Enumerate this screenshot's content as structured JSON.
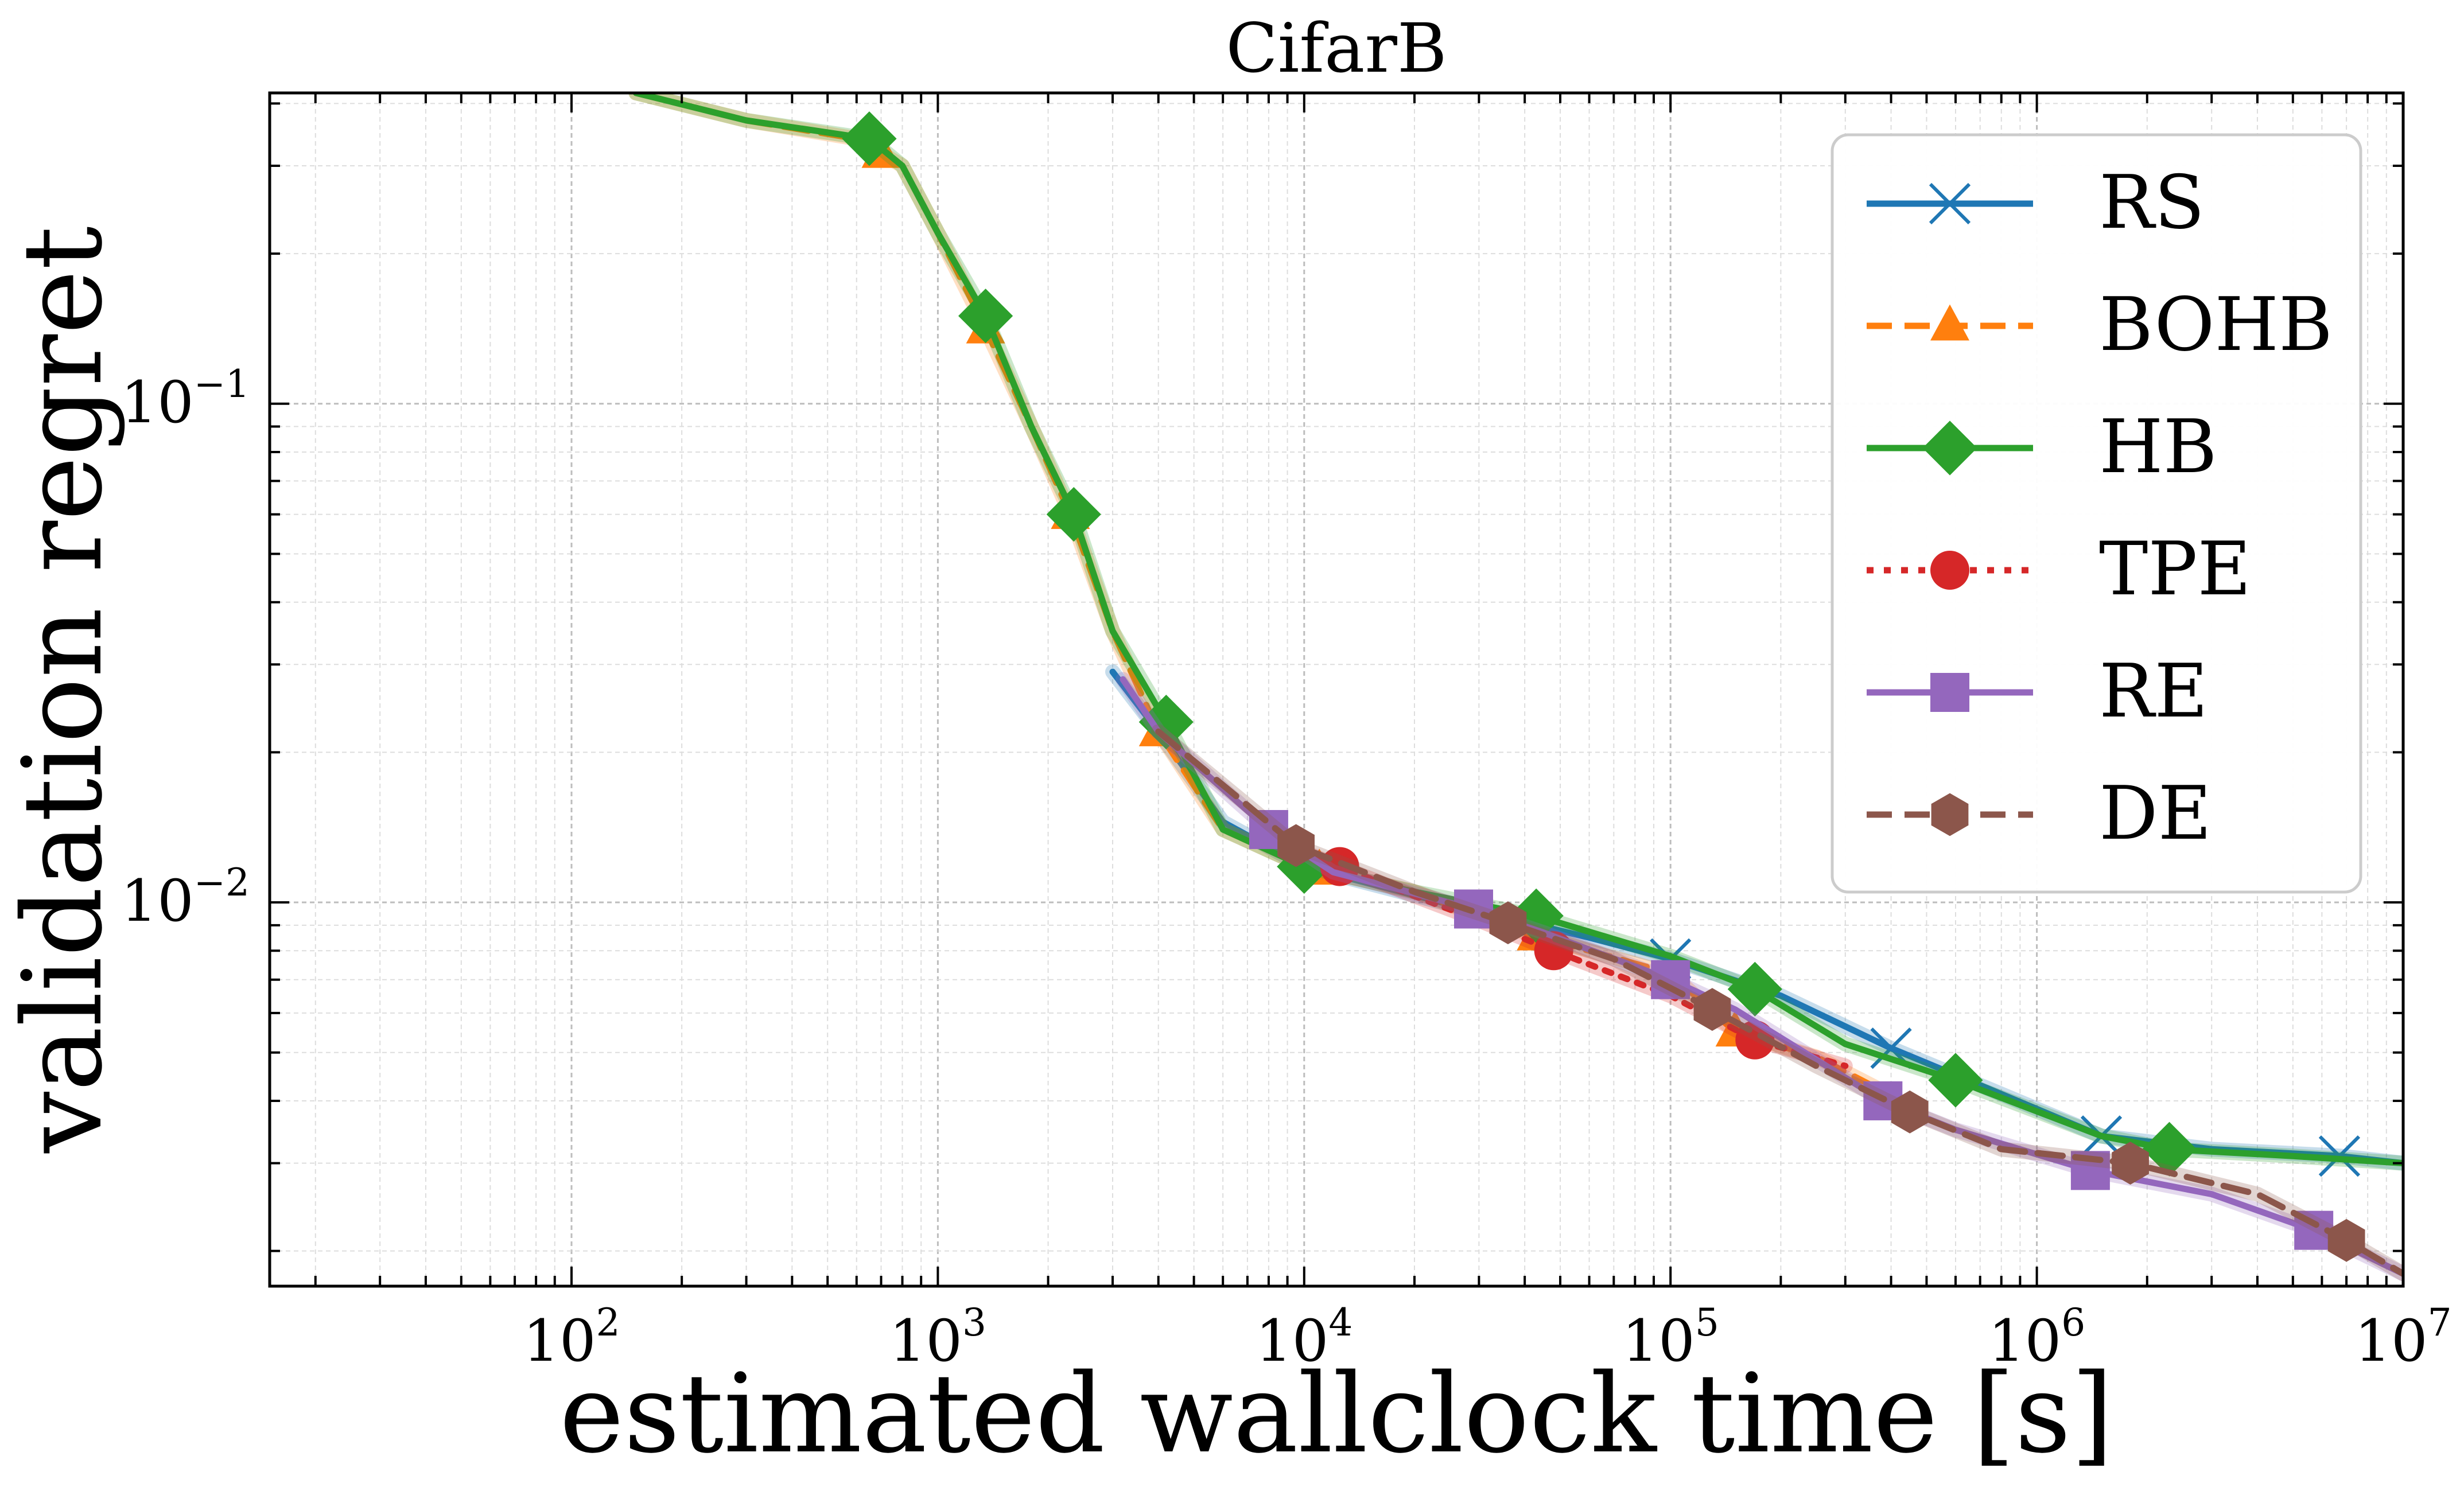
{
  "chart_data": {
    "type": "line",
    "title": "CifarB",
    "xlabel": "estimated wallclock time [s]",
    "ylabel": "validation regret",
    "x_scale": "log",
    "y_scale": "log",
    "xlim": [
      15,
      10000000
    ],
    "ylim": [
      0.0017,
      0.42
    ],
    "x_ticks": [
      {
        "value": 100,
        "base": "10",
        "exp": "2"
      },
      {
        "value": 1000,
        "base": "10",
        "exp": "3"
      },
      {
        "value": 10000,
        "base": "10",
        "exp": "4"
      },
      {
        "value": 100000,
        "base": "10",
        "exp": "5"
      },
      {
        "value": 1000000,
        "base": "10",
        "exp": "6"
      },
      {
        "value": 10000000,
        "base": "10",
        "exp": "7"
      }
    ],
    "y_ticks": [
      {
        "value": 0.1,
        "base": "10",
        "exp": "−1"
      },
      {
        "value": 0.01,
        "base": "10",
        "exp": "−2"
      }
    ],
    "grid": true,
    "legend_position": "top-right",
    "series": [
      {
        "name": "RS",
        "color": "#1f77b4",
        "dash": "solid",
        "marker": "x",
        "x": [
          3000,
          4000,
          6000,
          10000,
          25000,
          60000,
          100000,
          200000,
          400000,
          700000,
          1500000,
          3000000,
          6700000,
          10000000
        ],
        "y": [
          0.029,
          0.022,
          0.0145,
          0.0118,
          0.0099,
          0.0085,
          0.0077,
          0.0065,
          0.0051,
          0.0043,
          0.0034,
          0.0032,
          0.0031,
          0.003
        ],
        "markers_x": [
          100000,
          400000,
          1500000,
          6700000
        ]
      },
      {
        "name": "BOHB",
        "color": "#ff7f0e",
        "dash": "dashed",
        "marker": "triangle",
        "x": [
          150,
          300,
          600,
          800,
          1000,
          1300,
          1800,
          2300,
          3000,
          4000,
          6000,
          10000,
          20000,
          40000,
          100000,
          150000,
          250000,
          400000
        ],
        "y": [
          0.42,
          0.37,
          0.34,
          0.3,
          0.22,
          0.15,
          0.09,
          0.06,
          0.035,
          0.022,
          0.014,
          0.0118,
          0.0105,
          0.0087,
          0.0072,
          0.0055,
          0.0049,
          0.0041
        ],
        "markers_x": [
          700,
          1350,
          2300,
          4000,
          11000,
          43000,
          150000
        ]
      },
      {
        "name": "HB",
        "color": "#2ca02c",
        "dash": "solid",
        "marker": "diamond",
        "x": [
          150,
          300,
          650,
          800,
          1000,
          1350,
          1800,
          2350,
          3000,
          4200,
          6000,
          10000,
          20000,
          43000,
          100000,
          170000,
          300000,
          600000,
          1500000,
          2300000,
          5000000,
          10000000
        ],
        "y": [
          0.42,
          0.37,
          0.34,
          0.3,
          0.22,
          0.15,
          0.09,
          0.06,
          0.035,
          0.023,
          0.014,
          0.0118,
          0.0105,
          0.0094,
          0.0078,
          0.0067,
          0.0052,
          0.0044,
          0.0034,
          0.0032,
          0.0031,
          0.003
        ],
        "markers_x": [
          650,
          1350,
          2350,
          4200,
          10000,
          43000,
          170000,
          600000,
          2300000
        ]
      },
      {
        "name": "TPE",
        "color": "#d62728",
        "dash": "dotted",
        "marker": "circle",
        "x": [
          8000,
          12500,
          20000,
          30000,
          48000,
          100000,
          170000,
          300000
        ],
        "y": [
          0.0135,
          0.0118,
          0.0103,
          0.0092,
          0.008,
          0.0065,
          0.0053,
          0.0047
        ],
        "markers_x": [
          12500,
          48000,
          170000
        ]
      },
      {
        "name": "RE",
        "color": "#9467bd",
        "dash": "solid",
        "marker": "square",
        "x": [
          3200,
          4000,
          8000,
          12000,
          29000,
          45000,
          100000,
          150000,
          380000,
          600000,
          1400000,
          3000000,
          5700000,
          10000000
        ],
        "y": [
          0.028,
          0.022,
          0.014,
          0.0115,
          0.0097,
          0.0087,
          0.007,
          0.0061,
          0.004,
          0.0035,
          0.0029,
          0.0026,
          0.0022,
          0.0018
        ],
        "markers_x": [
          8000,
          29000,
          100000,
          380000,
          1400000,
          5700000
        ]
      },
      {
        "name": "DE",
        "color": "#8c564b",
        "dash": "dashed",
        "marker": "hexagon",
        "x": [
          4000,
          9500,
          20000,
          36000,
          70000,
          130000,
          250000,
          450000,
          800000,
          1800000,
          4000000,
          7000000,
          10000000
        ],
        "y": [
          0.022,
          0.013,
          0.0105,
          0.0091,
          0.0077,
          0.0061,
          0.0047,
          0.0038,
          0.0032,
          0.003,
          0.0026,
          0.0021,
          0.0018
        ],
        "markers_x": [
          9500,
          36000,
          130000,
          450000,
          1800000,
          7000000
        ]
      }
    ]
  }
}
